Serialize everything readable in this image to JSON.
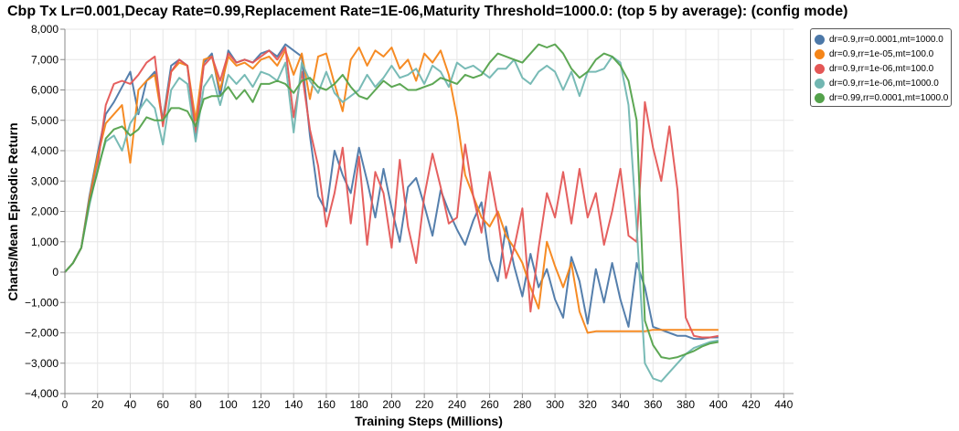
{
  "chart_data": {
    "type": "line",
    "title": "Cbp Tx Lr=0.001,Decay Rate=0.99,Replacement Rate=1E-06,Maturity Threshold=1000.0: (top 5 by average): (config mode)",
    "xlabel": "Training Steps (Millions)",
    "ylabel": "Charts/Mean Episodic Return",
    "xlim": [
      0,
      446
    ],
    "ylim": [
      -4000,
      8000
    ],
    "x_ticks": [
      0,
      20,
      40,
      60,
      80,
      100,
      120,
      140,
      160,
      180,
      200,
      220,
      240,
      260,
      280,
      300,
      320,
      340,
      360,
      380,
      400,
      420,
      440
    ],
    "y_ticks": [
      -4000,
      -3000,
      -2000,
      -1000,
      0,
      1000,
      2000,
      3000,
      4000,
      5000,
      6000,
      7000,
      8000
    ],
    "y_tick_labels": [
      "−4,000",
      "−3,000",
      "−2,000",
      "−1,000",
      "0",
      "1,000",
      "2,000",
      "3,000",
      "4,000",
      "5,000",
      "6,000",
      "7,000",
      "8,000"
    ],
    "grid": true,
    "legend_position": "top-right, outside plot",
    "series": [
      {
        "name": "dr=0.9,rr=0.0001,mt=1000.0",
        "color": "#4c78a8",
        "x": [
          0,
          5,
          10,
          15,
          20,
          25,
          30,
          35,
          40,
          45,
          50,
          55,
          60,
          65,
          70,
          75,
          80,
          85,
          90,
          95,
          100,
          105,
          110,
          115,
          120,
          125,
          130,
          135,
          140,
          145,
          150,
          155,
          160,
          165,
          170,
          175,
          180,
          185,
          190,
          195,
          200,
          205,
          210,
          215,
          220,
          225,
          230,
          235,
          240,
          245,
          250,
          255,
          260,
          265,
          270,
          275,
          280,
          285,
          290,
          295,
          300,
          305,
          310,
          315,
          320,
          325,
          330,
          335,
          340,
          345,
          350,
          355,
          360,
          365,
          370,
          375,
          380,
          385,
          390,
          395,
          400
        ],
        "y": [
          0,
          300,
          800,
          2500,
          3900,
          5200,
          5600,
          6100,
          6600,
          5200,
          6300,
          6600,
          5000,
          6800,
          7000,
          6800,
          4400,
          6900,
          7200,
          5800,
          7300,
          6900,
          7000,
          6900,
          7200,
          7300,
          7100,
          7500,
          7300,
          7100,
          4500,
          2500,
          2000,
          4000,
          3200,
          2600,
          4100,
          3000,
          1800,
          3400,
          2100,
          1000,
          2800,
          3100,
          2200,
          1200,
          2700,
          2000,
          1400,
          900,
          1700,
          2300,
          400,
          -300,
          1500,
          200,
          -800,
          600,
          -500,
          100,
          -900,
          -1500,
          500,
          -300,
          -1700,
          100,
          -1000,
          300,
          -900,
          -1800,
          300,
          -500,
          -1800,
          -1900,
          -2000,
          -2100,
          -2100,
          -2200,
          -2200,
          -2150,
          -2150
        ]
      },
      {
        "name": "dr=0.9,rr=1e-05,mt=100.0",
        "color": "#f58518",
        "x": [
          0,
          5,
          10,
          15,
          20,
          25,
          30,
          35,
          40,
          45,
          50,
          55,
          60,
          65,
          70,
          75,
          80,
          85,
          90,
          95,
          100,
          105,
          110,
          115,
          120,
          125,
          130,
          135,
          140,
          145,
          150,
          155,
          160,
          165,
          170,
          175,
          180,
          185,
          190,
          195,
          200,
          205,
          210,
          215,
          220,
          225,
          230,
          235,
          240,
          245,
          250,
          255,
          260,
          265,
          270,
          275,
          280,
          285,
          290,
          295,
          300,
          305,
          310,
          315,
          320,
          325,
          330,
          335,
          340,
          345,
          350,
          355,
          360,
          365,
          370,
          375,
          380,
          385,
          390,
          395,
          400
        ],
        "y": [
          0,
          300,
          800,
          2400,
          3800,
          4900,
          5200,
          5500,
          3600,
          6000,
          6300,
          6500,
          4900,
          6600,
          6900,
          6800,
          5000,
          7000,
          7100,
          6000,
          7100,
          6800,
          6900,
          6700,
          7000,
          7100,
          6800,
          7300,
          6500,
          7200,
          5700,
          7100,
          7200,
          6200,
          5300,
          7000,
          7400,
          6800,
          7300,
          7100,
          7400,
          6700,
          7000,
          6300,
          7200,
          6900,
          7300,
          6500,
          5100,
          3200,
          2500,
          1800,
          1500,
          2000,
          1200,
          800,
          300,
          -500,
          -1200,
          1000,
          200,
          -500,
          300,
          -1300,
          -2000,
          -1950,
          -1950,
          -1950,
          -1950,
          -1950,
          -1950,
          -1950,
          -1900,
          -1900,
          -1900,
          -1900,
          -1900,
          -1900,
          -1900,
          -1900,
          -1900
        ]
      },
      {
        "name": "dr=0.9,rr=1e-06,mt=100.0",
        "color": "#e45756",
        "x": [
          0,
          5,
          10,
          15,
          20,
          25,
          30,
          35,
          40,
          45,
          50,
          55,
          60,
          65,
          70,
          75,
          80,
          85,
          90,
          95,
          100,
          105,
          110,
          115,
          120,
          125,
          130,
          135,
          140,
          145,
          150,
          155,
          160,
          165,
          170,
          175,
          180,
          185,
          190,
          195,
          200,
          205,
          210,
          215,
          220,
          225,
          230,
          235,
          240,
          245,
          250,
          255,
          260,
          265,
          270,
          275,
          280,
          285,
          290,
          295,
          300,
          305,
          310,
          315,
          320,
          325,
          330,
          335,
          340,
          345,
          350,
          355,
          360,
          365,
          370,
          375,
          380,
          385,
          390,
          395,
          400
        ],
        "y": [
          0,
          300,
          800,
          2300,
          3500,
          5500,
          6200,
          6300,
          6200,
          6500,
          6900,
          7100,
          4800,
          6600,
          7000,
          6800,
          4600,
          6800,
          7100,
          6300,
          7200,
          6900,
          7000,
          6900,
          7100,
          7300,
          7000,
          7400,
          5100,
          6600,
          4700,
          3500,
          1500,
          2600,
          4100,
          1600,
          3800,
          900,
          3300,
          2600,
          800,
          3700,
          1500,
          300,
          2500,
          3900,
          2800,
          1600,
          1800,
          4200,
          2500,
          1300,
          3300,
          1800,
          -200,
          800,
          2100,
          -1300,
          800,
          2600,
          1800,
          3300,
          1600,
          3400,
          1800,
          2600,
          900,
          2000,
          3400,
          1200,
          1000,
          5600,
          4100,
          3000,
          4800,
          2700,
          -1500,
          -2100,
          -2150,
          -2150,
          -2100
        ]
      },
      {
        "name": "dr=0.9,rr=1e-06,mt=1000.0",
        "color": "#72b7b2",
        "x": [
          0,
          5,
          10,
          15,
          20,
          25,
          30,
          35,
          40,
          45,
          50,
          55,
          60,
          65,
          70,
          75,
          80,
          85,
          90,
          95,
          100,
          105,
          110,
          115,
          120,
          125,
          130,
          135,
          140,
          145,
          150,
          155,
          160,
          165,
          170,
          175,
          180,
          185,
          190,
          195,
          200,
          205,
          210,
          215,
          220,
          225,
          230,
          235,
          240,
          245,
          250,
          255,
          260,
          265,
          270,
          275,
          280,
          285,
          290,
          295,
          300,
          305,
          310,
          315,
          320,
          325,
          330,
          335,
          340,
          345,
          350,
          355,
          360,
          365,
          370,
          375,
          380,
          385,
          390,
          395,
          400
        ],
        "y": [
          0,
          300,
          800,
          2200,
          3400,
          4300,
          4500,
          4000,
          4900,
          5300,
          5700,
          5400,
          4200,
          6000,
          6400,
          6200,
          4300,
          6100,
          6500,
          5500,
          6500,
          6200,
          6500,
          6100,
          6600,
          6500,
          6300,
          6900,
          4600,
          6900,
          6300,
          5900,
          6600,
          5900,
          5600,
          5800,
          6000,
          6500,
          6100,
          6400,
          6800,
          6400,
          6500,
          6700,
          6200,
          6800,
          6600,
          6100,
          6900,
          6700,
          6800,
          6600,
          6400,
          6700,
          6700,
          7000,
          6400,
          6200,
          6600,
          6800,
          6600,
          6000,
          6600,
          5800,
          6600,
          6600,
          6700,
          7100,
          6900,
          5500,
          1500,
          -3000,
          -3500,
          -3600,
          -3300,
          -3000,
          -2700,
          -2500,
          -2400,
          -2300,
          -2250
        ]
      },
      {
        "name": "dr=0.99,rr=0.0001,mt=1000.0",
        "color": "#54a24b",
        "x": [
          0,
          5,
          10,
          15,
          20,
          25,
          30,
          35,
          40,
          45,
          50,
          55,
          60,
          65,
          70,
          75,
          80,
          85,
          90,
          95,
          100,
          105,
          110,
          115,
          120,
          125,
          130,
          135,
          140,
          145,
          150,
          155,
          160,
          165,
          170,
          175,
          180,
          185,
          190,
          195,
          200,
          205,
          210,
          215,
          220,
          225,
          230,
          235,
          240,
          245,
          250,
          255,
          260,
          265,
          270,
          275,
          280,
          285,
          290,
          295,
          300,
          305,
          310,
          315,
          320,
          325,
          330,
          335,
          340,
          345,
          350,
          355,
          360,
          365,
          370,
          375,
          380,
          385,
          390,
          395,
          400
        ],
        "y": [
          0,
          300,
          800,
          2300,
          3300,
          4400,
          4700,
          4800,
          4500,
          4700,
          5100,
          5000,
          5000,
          5400,
          5400,
          5300,
          4800,
          5700,
          5800,
          5800,
          6100,
          5700,
          6000,
          5600,
          6200,
          6200,
          6300,
          6200,
          5900,
          6300,
          6400,
          6100,
          6000,
          6200,
          6500,
          6100,
          5800,
          5700,
          6000,
          6300,
          6100,
          6200,
          6000,
          6000,
          6100,
          6200,
          6400,
          6300,
          6200,
          6500,
          6400,
          6500,
          6900,
          7200,
          7100,
          7000,
          6900,
          7200,
          7500,
          7400,
          7500,
          7200,
          6700,
          6400,
          6600,
          7000,
          7200,
          7100,
          6800,
          6300,
          5000,
          -1600,
          -2400,
          -2800,
          -2850,
          -2800,
          -2700,
          -2600,
          -2450,
          -2350,
          -2300
        ]
      }
    ]
  }
}
